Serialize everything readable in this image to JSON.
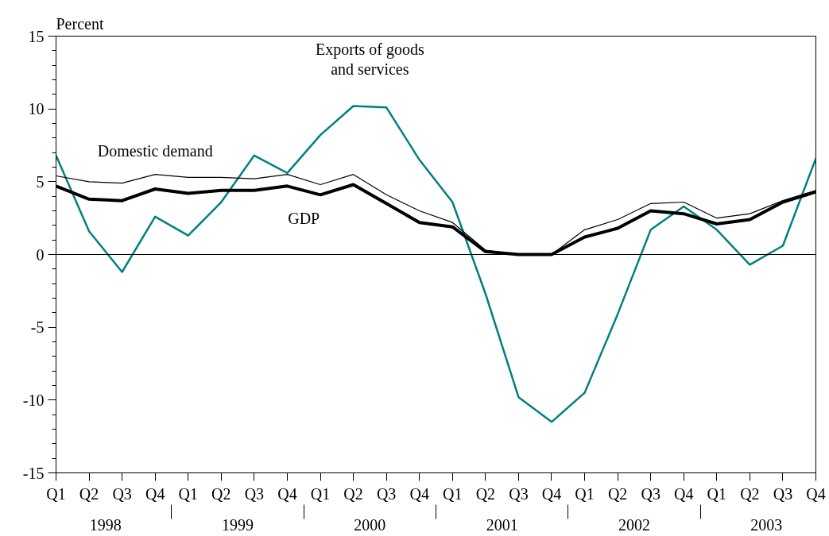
{
  "chart_data": {
    "type": "line",
    "ylabel": "Percent",
    "categories": [
      "Q1",
      "Q2",
      "Q3",
      "Q4",
      "Q1",
      "Q2",
      "Q3",
      "Q4",
      "Q1",
      "Q2",
      "Q3",
      "Q4",
      "Q1",
      "Q2",
      "Q3",
      "Q4",
      "Q1",
      "Q2",
      "Q3",
      "Q4",
      "Q1",
      "Q2",
      "Q3",
      "Q4"
    ],
    "annotations": [
      "1998",
      "1999",
      "2000",
      "2001",
      "2002",
      "2003"
    ],
    "series": [
      {
        "name": "Exports of goods and services",
        "color": "#008080",
        "values": [
          6.8,
          1.6,
          -1.2,
          2.6,
          1.3,
          3.6,
          6.8,
          5.6,
          8.2,
          10.2,
          10.1,
          6.5,
          3.6,
          -2.7,
          -9.8,
          -11.5,
          -9.5,
          -4.1,
          1.7,
          3.3,
          1.7,
          -0.7,
          0.6,
          6.6
        ]
      },
      {
        "name": "Domestic demand",
        "color": "#000000",
        "values": [
          5.4,
          5.0,
          4.9,
          5.5,
          5.3,
          5.3,
          5.2,
          5.5,
          4.8,
          5.5,
          4.1,
          3.0,
          2.2,
          0.3,
          0.0,
          0.0,
          1.7,
          2.4,
          3.5,
          3.6,
          2.5,
          2.8,
          3.7,
          4.4
        ]
      },
      {
        "name": "GDP",
        "color": "#000000",
        "values": [
          4.7,
          3.8,
          3.7,
          4.5,
          4.2,
          4.4,
          4.4,
          4.7,
          4.1,
          4.8,
          3.5,
          2.2,
          1.9,
          0.2,
          0.0,
          0.0,
          1.2,
          1.8,
          3.0,
          2.8,
          2.1,
          2.4,
          3.6,
          4.3
        ]
      }
    ],
    "ylim": [
      -15,
      15
    ],
    "yticks": [
      -15,
      -10,
      -5,
      0,
      5,
      10,
      15
    ],
    "ref_lines": [
      {
        "axis": "y",
        "value": 0,
        "color": "#000000"
      }
    ],
    "grid": false,
    "marker": "none",
    "line_style": "solid"
  }
}
